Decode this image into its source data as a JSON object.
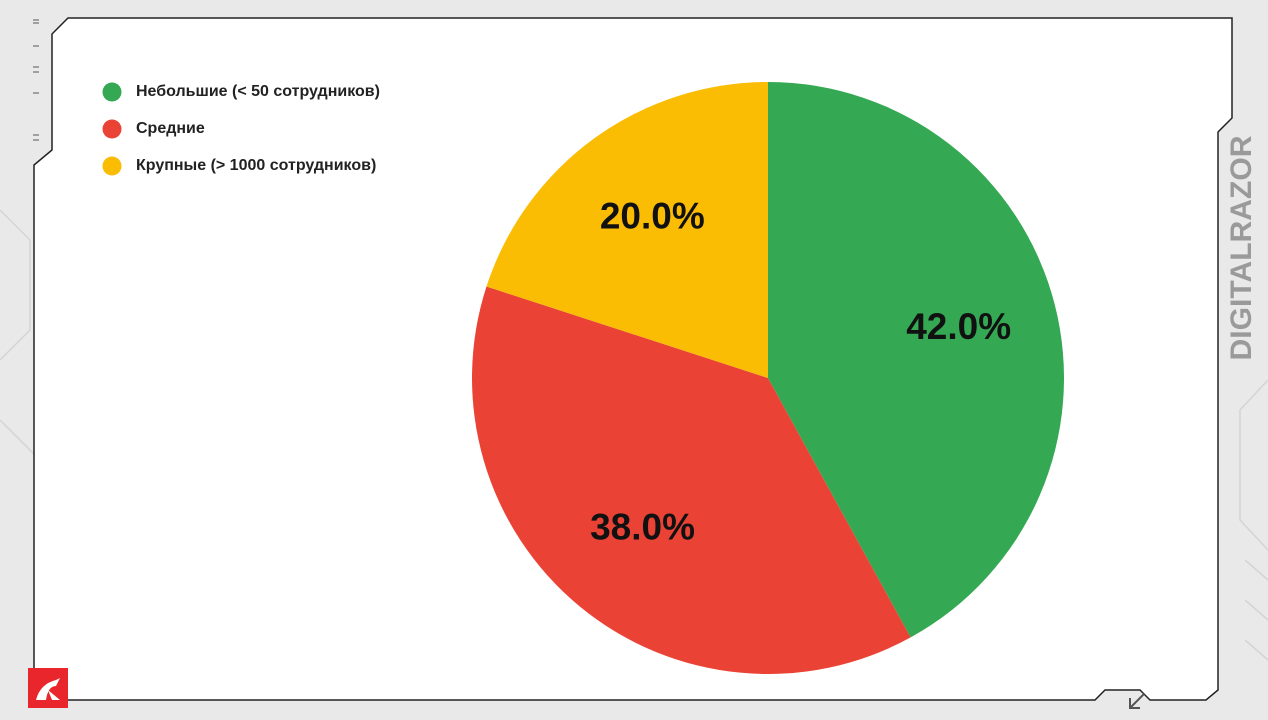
{
  "chart_data": {
    "type": "pie",
    "categories": [
      "Небольшие (< 50 сотрудников)",
      "Средние",
      "Крупные (> 1000 сотрудников)"
    ],
    "values": [
      42,
      38,
      20
    ],
    "value_labels": [
      "42.0%",
      "38.0%",
      "20.0%"
    ],
    "colors": [
      "#34a853",
      "#ea4335",
      "#fbbc04"
    ]
  },
  "brand": "DIGITALRAZOR"
}
